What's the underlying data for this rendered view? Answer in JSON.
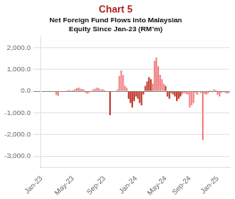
{
  "chart_data": {
    "type": "bar",
    "title": "Chart 5",
    "subtitle": "Net Foreign Fund Flows into Malaysian\nEquity Since Jan-23 (RM’m)",
    "categories": [
      "Jan-23",
      null,
      null,
      null,
      null,
      null,
      null,
      null,
      null,
      null,
      null,
      null,
      null,
      null,
      null,
      null,
      null,
      "May-23",
      null,
      null,
      null,
      null,
      null,
      null,
      null,
      null,
      null,
      null,
      null,
      null,
      null,
      null,
      null,
      null,
      "Sep-23",
      null,
      null,
      null,
      null,
      null,
      null,
      null,
      null,
      null,
      null,
      null,
      null,
      null,
      null,
      null,
      null,
      "Jan-24",
      null,
      null,
      null,
      null,
      null,
      null,
      null,
      null,
      null,
      null,
      null,
      null,
      null,
      null,
      null,
      "May-24",
      null,
      null,
      null,
      null,
      null,
      null,
      null,
      null,
      null,
      null,
      null,
      null,
      "Sep-24",
      null,
      null,
      null,
      null,
      null,
      null,
      null,
      null,
      null,
      null,
      null,
      null,
      null,
      null,
      "Jan-25",
      null,
      null,
      null,
      null,
      null,
      null
    ],
    "values": [
      -20,
      -15,
      -10,
      -5,
      -25,
      -10,
      -15,
      -10,
      -180,
      -220,
      -5,
      -30,
      -15,
      -10,
      40,
      60,
      30,
      50,
      90,
      130,
      160,
      110,
      90,
      70,
      -80,
      -110,
      -40,
      30,
      90,
      110,
      160,
      130,
      70,
      90,
      50,
      -5,
      -10,
      -1100,
      -20,
      -15,
      -20,
      80,
      700,
      950,
      750,
      250,
      150,
      -350,
      -550,
      -750,
      -450,
      -250,
      -350,
      -550,
      -650,
      -150,
      250,
      450,
      650,
      550,
      350,
      1400,
      1550,
      1150,
      750,
      550,
      350,
      250,
      -250,
      -350,
      -80,
      -150,
      -250,
      -450,
      -350,
      -250,
      -150,
      -80,
      -120,
      -160,
      -750,
      -650,
      -550,
      -80,
      -160,
      -40,
      -80,
      -2250,
      -120,
      -160,
      -80,
      40,
      -40,
      80,
      60,
      -160,
      -250,
      -80,
      -40,
      -60,
      -100,
      -80
    ],
    "colors": [
      "#f08080",
      "#f08080",
      "#f08080",
      "#f08080",
      "#f08080",
      "#f08080",
      "#f08080",
      "#f08080",
      "#f08080",
      "#f08080",
      "#f08080",
      "#f08080",
      "#f08080",
      "#f08080",
      "#f08080",
      "#f08080",
      "#f08080",
      "#f08080",
      "#f08080",
      "#f08080",
      "#f08080",
      "#f08080",
      "#f08080",
      "#f08080",
      "#f08080",
      "#f08080",
      "#f08080",
      "#f08080",
      "#f08080",
      "#f08080",
      "#f08080",
      "#f08080",
      "#f08080",
      "#f08080",
      "#f08080",
      "#f08080",
      "#f08080",
      "#c0392b",
      "#f08080",
      "#f08080",
      "#f08080",
      "#f08080",
      "#f08080",
      "#f08080",
      "#f08080",
      "#f08080",
      "#f08080",
      "#c0392b",
      "#c0392b",
      "#c0392b",
      "#c0392b",
      "#c0392b",
      "#c0392b",
      "#c0392b",
      "#c0392b",
      "#c0392b",
      "#c0392b",
      "#c0392b",
      "#c0392b",
      "#c0392b",
      "#f08080",
      "#f08080",
      "#f08080",
      "#f08080",
      "#f08080",
      "#f08080",
      "#f08080",
      "#c0392b",
      "#c0392b",
      "#c0392b",
      "#c0392b",
      "#c0392b",
      "#c0392b",
      "#c0392b",
      "#c0392b",
      "#c0392b",
      "#f08080",
      "#f08080",
      "#f08080",
      "#f08080",
      "#f08080",
      "#f08080",
      "#f08080",
      "#f08080",
      "#f08080",
      "#f08080",
      "#f08080",
      "#f08080",
      "#f08080",
      "#f08080",
      "#f08080",
      "#f08080",
      "#f08080",
      "#f08080",
      "#f08080",
      "#f08080",
      "#f08080",
      "#f08080",
      "#f08080",
      "#f08080",
      "#f08080",
      "#f08080"
    ],
    "ylim": [
      -3500,
      2500
    ],
    "yticks": [
      {
        "value": -3000,
        "label": "-3,000.0"
      },
      {
        "value": -2000,
        "label": "-2,000.0"
      },
      {
        "value": -1000,
        "label": "-1,000.0"
      },
      {
        "value": 0,
        "label": "0.0"
      },
      {
        "value": 1000,
        "label": "1,000.0"
      },
      {
        "value": 2000,
        "label": "2,000.0"
      }
    ],
    "grid": true
  }
}
